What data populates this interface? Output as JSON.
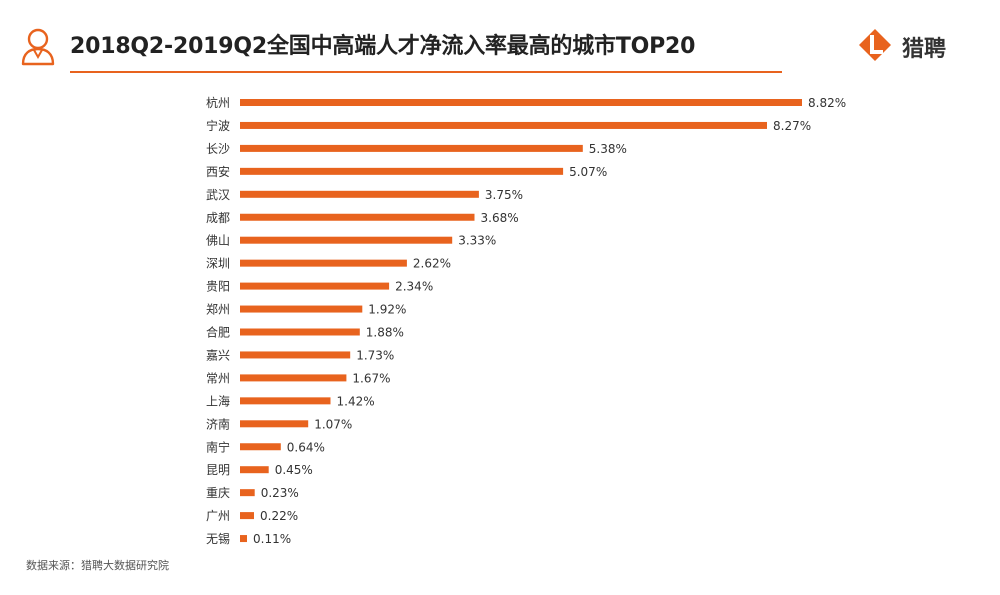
{
  "header": {
    "title": "2018Q2-2019Q2全国中高端人才净流入率最高的城市TOP20",
    "logo_text": "猎聘",
    "logo_icon": "liepin-logo-icon",
    "title_icon": "person-icon"
  },
  "colors": {
    "accent": "#e8631e",
    "text": "#333333"
  },
  "chart_data": {
    "type": "bar",
    "orientation": "horizontal",
    "categories": [
      "杭州",
      "宁波",
      "长沙",
      "西安",
      "武汉",
      "成都",
      "佛山",
      "深圳",
      "贵阳",
      "郑州",
      "合肥",
      "嘉兴",
      "常州",
      "上海",
      "济南",
      "南宁",
      "昆明",
      "重庆",
      "广州",
      "无锡"
    ],
    "values": [
      8.82,
      8.27,
      5.38,
      5.07,
      3.75,
      3.68,
      3.33,
      2.62,
      2.34,
      1.92,
      1.88,
      1.73,
      1.67,
      1.42,
      1.07,
      0.64,
      0.45,
      0.23,
      0.22,
      0.11
    ],
    "value_labels": [
      "8.82%",
      "8.27%",
      "5.38%",
      "5.07%",
      "3.75%",
      "3.68%",
      "3.33%",
      "2.62%",
      "2.34%",
      "1.92%",
      "1.88%",
      "1.73%",
      "1.67%",
      "1.42%",
      "1.07%",
      "0.64%",
      "0.45%",
      "0.23%",
      "0.22%",
      "0.11%"
    ],
    "unit": "%",
    "xlim": [
      0,
      8.82
    ],
    "grid": false,
    "legend": "none"
  },
  "footer": {
    "source": "数据来源：猎聘大数据研究院"
  }
}
